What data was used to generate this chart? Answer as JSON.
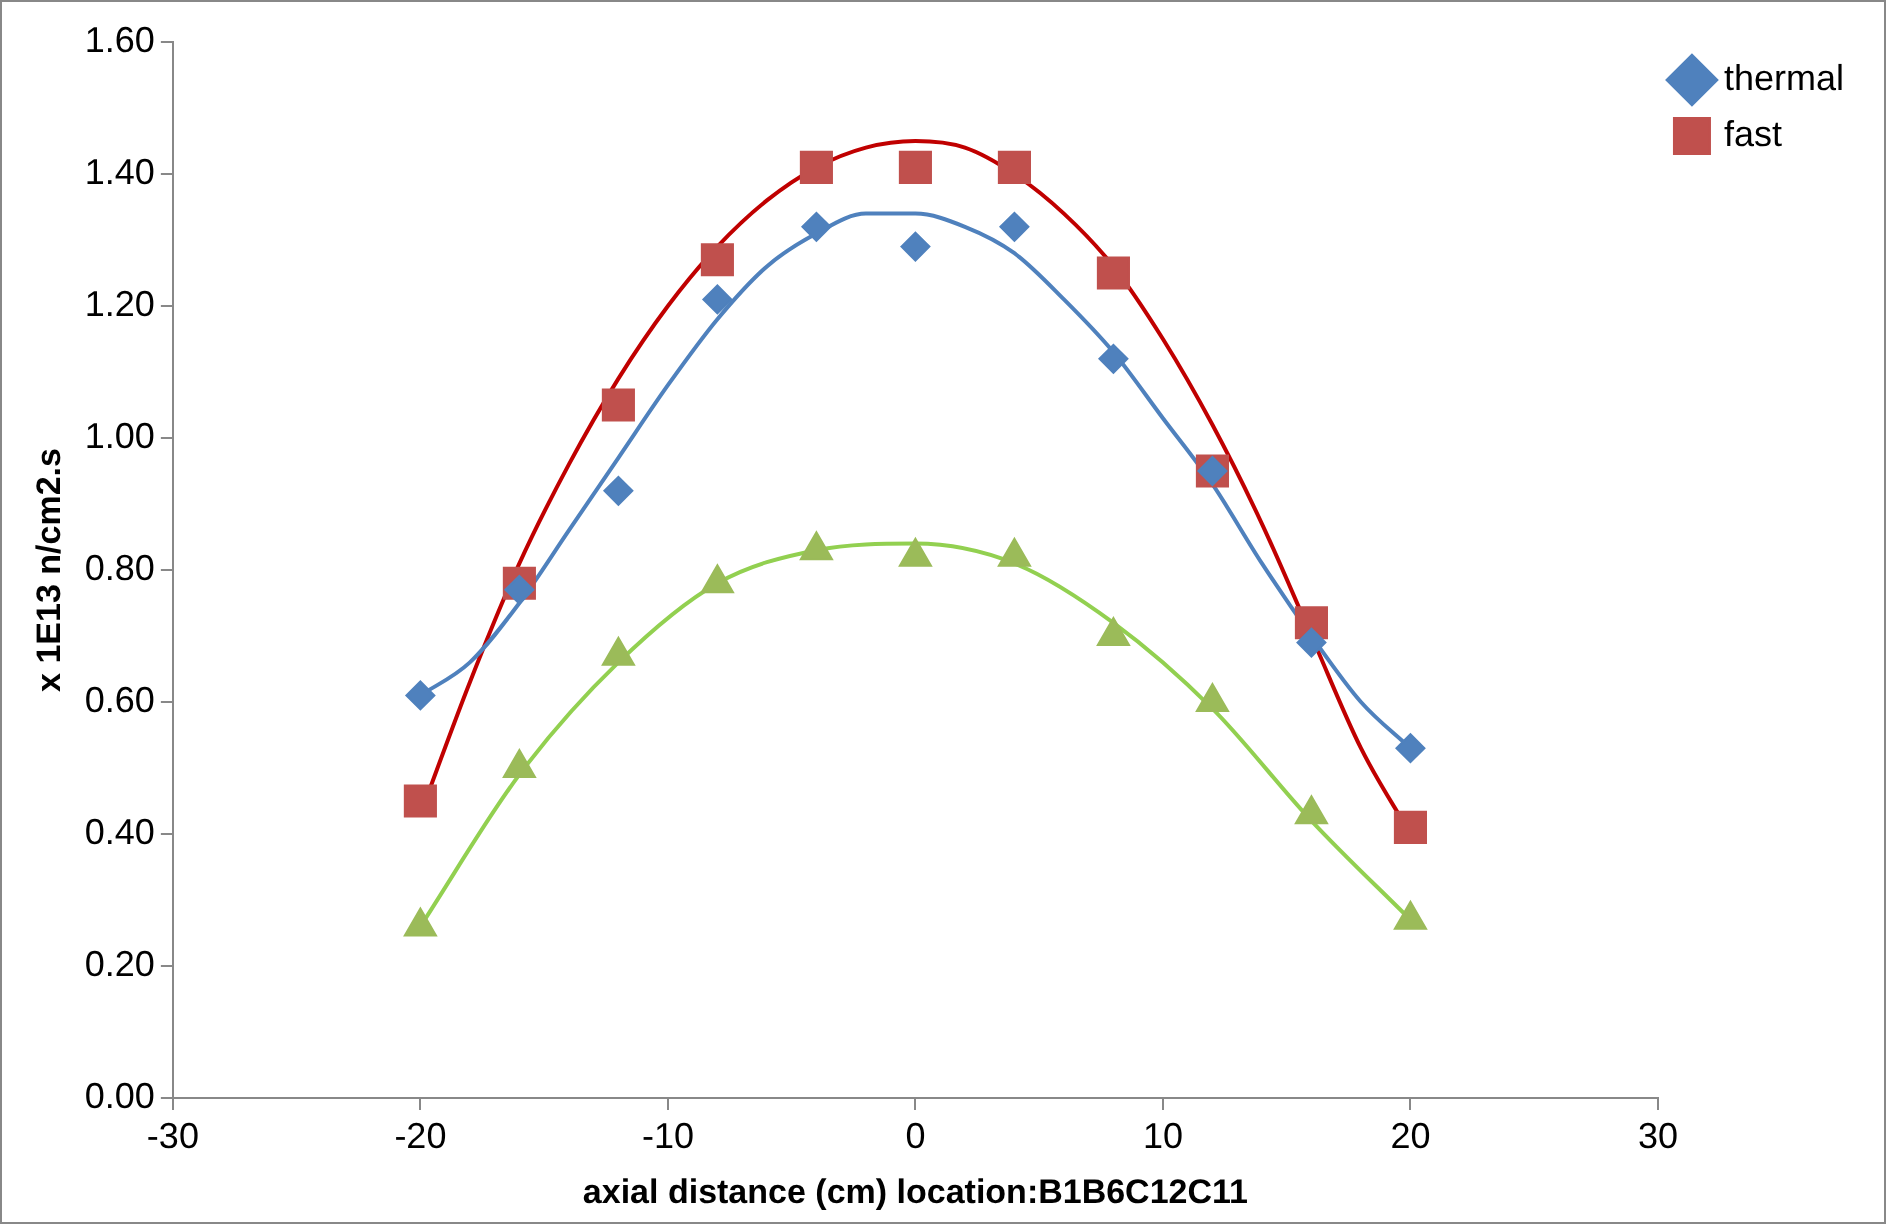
{
  "chart_data": {
    "type": "scatter",
    "xlabel": "axial distance (cm) location:B1B6C12C11",
    "ylabel": "x 1E13 n/cm2.s",
    "xlim": [
      -30,
      30
    ],
    "xticks": [
      -30,
      -20,
      -10,
      0,
      10,
      20,
      30
    ],
    "ylim": [
      0,
      1.6
    ],
    "yticks": [
      {
        "value": 0,
        "label": "0.00"
      },
      {
        "value": 0.2,
        "label": "0.20"
      },
      {
        "value": 0.4,
        "label": "0.40"
      },
      {
        "value": 0.6,
        "label": "0.60"
      },
      {
        "value": 0.8,
        "label": "0.80"
      },
      {
        "value": 1.0,
        "label": "1.00"
      },
      {
        "value": 1.2,
        "label": "1.20"
      },
      {
        "value": 1.4,
        "label": "1.40"
      },
      {
        "value": 1.6,
        "label": "1.60"
      }
    ],
    "grid": false,
    "legend": "right",
    "series": [
      {
        "type": "line",
        "marker": "none",
        "color": "#4f81bd",
        "x": [
          -20,
          -18,
          -16,
          -14,
          -12,
          -10,
          -8,
          -6,
          -4,
          -2,
          0,
          2,
          4,
          6,
          8,
          10,
          12,
          14,
          16,
          18,
          20
        ],
        "values": [
          0.61,
          0.66,
          0.75,
          0.86,
          0.97,
          1.08,
          1.18,
          1.26,
          1.31,
          1.34,
          1.34,
          1.32,
          1.28,
          1.21,
          1.13,
          1.03,
          0.93,
          0.81,
          0.7,
          0.6,
          0.53
        ]
      },
      {
        "type": "line",
        "marker": "none",
        "color": "#c00000",
        "x": [
          -20,
          -18,
          -16,
          -14,
          -12,
          -10,
          -8,
          -6,
          -4,
          -2,
          0,
          2,
          4,
          6,
          8,
          10,
          12,
          14,
          16,
          18,
          20
        ],
        "values": [
          0.43,
          0.63,
          0.81,
          0.96,
          1.09,
          1.2,
          1.29,
          1.36,
          1.41,
          1.44,
          1.45,
          1.44,
          1.4,
          1.34,
          1.26,
          1.15,
          1.02,
          0.87,
          0.7,
          0.53,
          0.4
        ]
      },
      {
        "type": "line",
        "marker": "none",
        "color": "#92d050",
        "x": [
          -20,
          -16,
          -12,
          -8,
          -4,
          0,
          4,
          8,
          12,
          16,
          20
        ],
        "values": [
          0.26,
          0.49,
          0.66,
          0.78,
          0.83,
          0.84,
          0.81,
          0.72,
          0.59,
          0.42,
          0.27
        ]
      },
      {
        "name": "thermal",
        "marker": "diamond",
        "color": "#4f81bd",
        "x": [
          -20,
          -16,
          -12,
          -8,
          -4,
          0,
          4,
          8,
          12,
          16,
          20
        ],
        "values": [
          0.61,
          0.77,
          0.92,
          1.21,
          1.32,
          1.29,
          1.32,
          1.12,
          0.95,
          0.69,
          0.53
        ]
      },
      {
        "name": "fast",
        "marker": "square",
        "color": "#c0504d",
        "x": [
          -20,
          -16,
          -12,
          -8,
          -4,
          0,
          4,
          8,
          12,
          16,
          20
        ],
        "values": [
          0.45,
          0.78,
          1.05,
          1.27,
          1.41,
          1.41,
          1.41,
          1.25,
          0.95,
          0.72,
          0.41
        ]
      },
      {
        "marker": "triangle",
        "color": "#9bbb59",
        "x": [
          -20,
          -16,
          -12,
          -8,
          -4,
          0,
          4,
          8,
          12,
          16,
          20
        ],
        "values": [
          0.26,
          0.5,
          0.67,
          0.78,
          0.83,
          0.82,
          0.82,
          0.7,
          0.6,
          0.43,
          0.27
        ]
      }
    ]
  }
}
